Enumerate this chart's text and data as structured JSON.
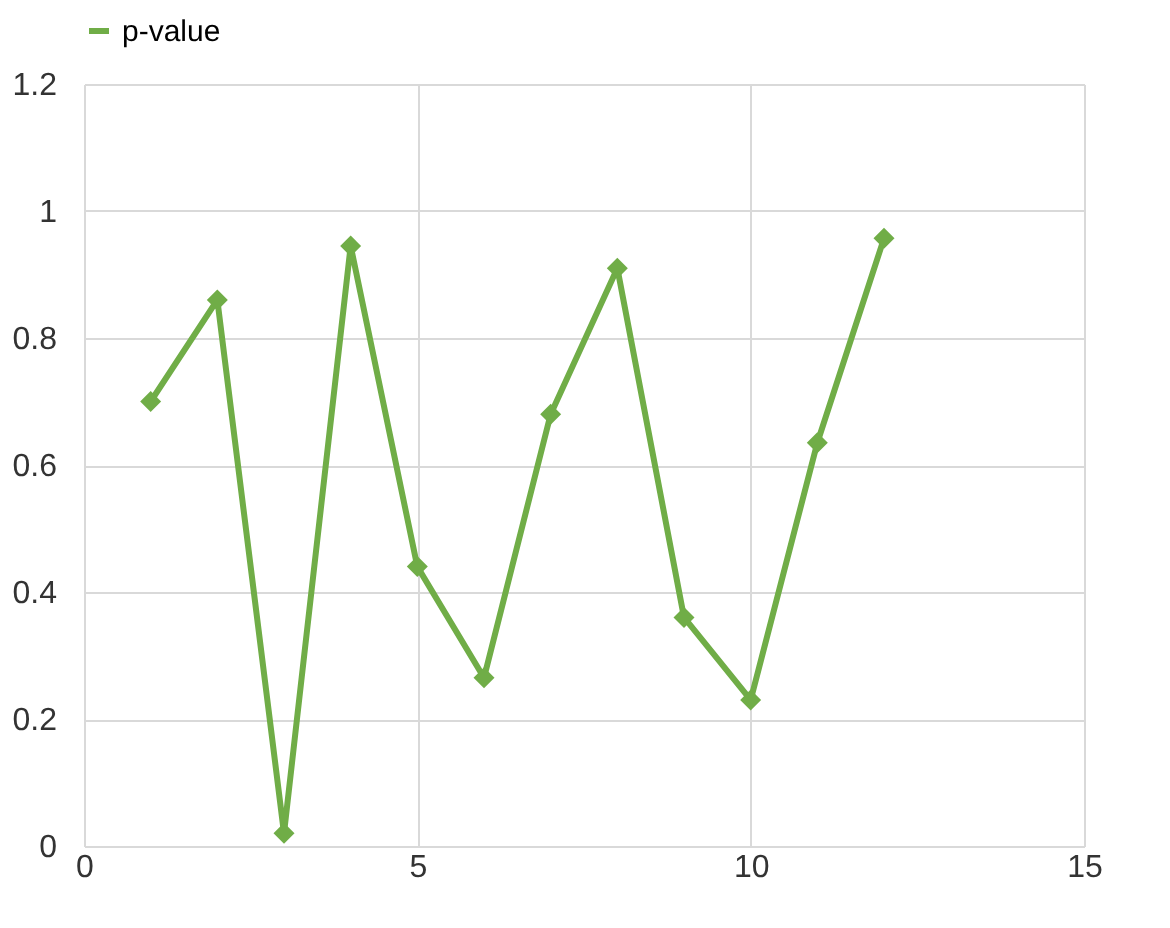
{
  "chart_data": {
    "type": "line",
    "x": [
      1,
      2,
      3,
      4,
      5,
      6,
      7,
      8,
      9,
      10,
      11,
      12
    ],
    "series": [
      {
        "name": "p-value",
        "color": "#70ad47",
        "values": [
          0.7,
          0.86,
          0.02,
          0.945,
          0.44,
          0.265,
          0.68,
          0.91,
          0.36,
          0.23,
          0.635,
          0.957
        ]
      }
    ],
    "xlim": [
      0,
      15
    ],
    "xticks": [
      0,
      5,
      10,
      15
    ],
    "ylim": [
      0,
      1.2
    ],
    "yticks": [
      0,
      0.2,
      0.4,
      0.6,
      0.8,
      1,
      1.2
    ],
    "grid": true,
    "legend": "top",
    "marker": "diamond",
    "line_style": "solid"
  }
}
